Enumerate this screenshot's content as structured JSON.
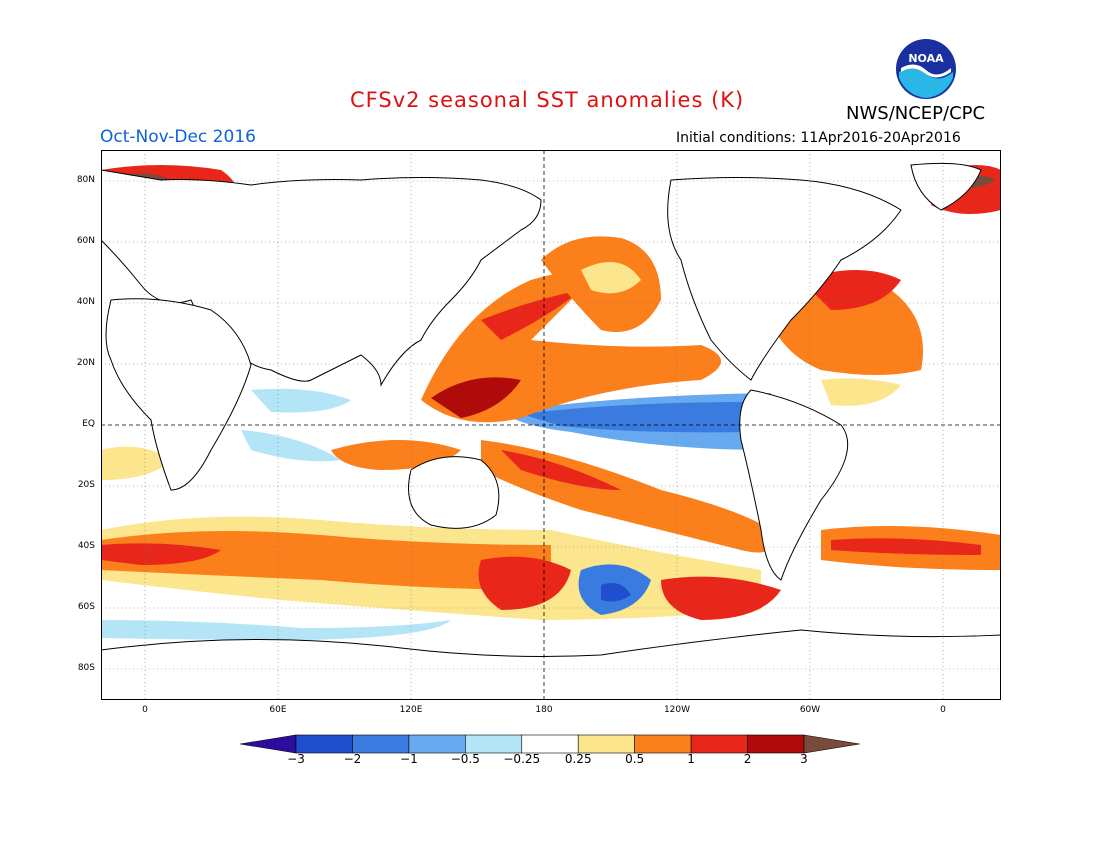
{
  "title": "CFSv2 seasonal SST anomalies (K)",
  "org": "NWS/NCEP/CPC",
  "season": "Oct-Nov-Dec 2016",
  "initial_conditions": "Initial conditions: 11Apr2016-20Apr2016",
  "logo_text": "NOAA",
  "lat_labels": [
    "80N",
    "60N",
    "40N",
    "20N",
    "EQ",
    "20S",
    "40S",
    "60S",
    "80S"
  ],
  "lon_labels": [
    "0",
    "60E",
    "120E",
    "180",
    "120W",
    "60W",
    "0"
  ],
  "colorbar": {
    "labels": [
      "-3",
      "-2",
      "-1",
      "-0.5",
      "-0.25",
      "0.25",
      "0.5",
      "1",
      "2",
      "3"
    ],
    "colors": [
      "#2c0d9e",
      "#1f4fcf",
      "#3a7be0",
      "#67a9ef",
      "#b3e5f7",
      "#ffffff",
      "#fbe58d",
      "#fb7f1a",
      "#e8261a",
      "#b00b0b",
      "#7a4a3a"
    ]
  },
  "colors": {
    "title": "#e01010",
    "season": "#1060e0",
    "deep_blue": "#1f4fcf",
    "blue": "#3a7be0",
    "light_blue": "#67a9ef",
    "pale_blue": "#b3e5f7",
    "yellow": "#fbe58d",
    "orange": "#fb7f1a",
    "red": "#e8261a",
    "dark_red": "#b00b0b",
    "brown": "#7a4a3a"
  }
}
